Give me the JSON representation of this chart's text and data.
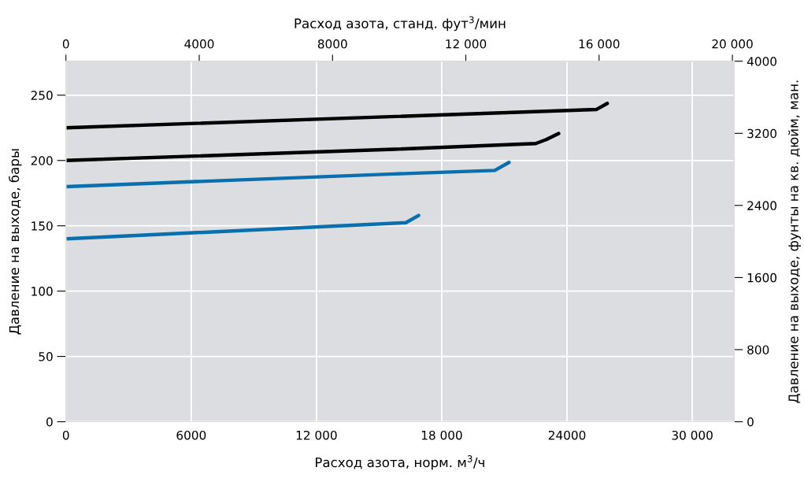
{
  "chart_data": {
    "type": "line",
    "xlabel": "Расход азота, норм. м$^{3}$/ч",
    "ylabel": "Давление на выходе, бары",
    "y2label": "Давление на выходе, фунты на кв. дюйм, ман.",
    "x2label": "Расход азота, станд. фут$^{3}$/мин",
    "xlim": [
      0,
      32000
    ],
    "xticks": [
      0,
      6000,
      {
        "value": 12000,
        "label": "12 000"
      },
      {
        "value": 18000,
        "label": "18 000"
      },
      24000,
      {
        "value": 30000,
        "label": "30 000"
      }
    ],
    "x2lim": [
      0,
      20050
    ],
    "x2ticks": [
      0,
      4000,
      8000,
      {
        "value": 12000,
        "label": "12 000"
      },
      {
        "value": 16000,
        "label": "16 000"
      },
      {
        "value": 20000,
        "label": "20 000"
      }
    ],
    "ylim": [
      0,
      276
    ],
    "yticks": [
      0,
      50,
      100,
      150,
      200,
      250
    ],
    "y2lim": [
      0,
      4000
    ],
    "y2ticks": [
      0,
      800,
      1600,
      2400,
      3200,
      4000
    ],
    "grid": true,
    "line_style": "solid",
    "series": [
      {
        "color": "#000000",
        "x": [
          0,
          25400,
          25930
        ],
        "values": [
          225,
          239,
          243.7
        ]
      },
      {
        "color": "#000000",
        "x": [
          0,
          15720,
          22500,
          23000,
          23600
        ],
        "values": [
          200,
          208.6,
          213,
          216,
          220.6
        ]
      },
      {
        "color": "#0a6fad",
        "x": [
          0,
          15720,
          20540,
          21220
        ],
        "values": [
          180,
          189.7,
          192.4,
          198.5
        ]
      },
      {
        "color": "#0a6fad",
        "x": [
          0,
          16280,
          16890
        ],
        "values": [
          140,
          152.4,
          157.9
        ]
      }
    ]
  }
}
